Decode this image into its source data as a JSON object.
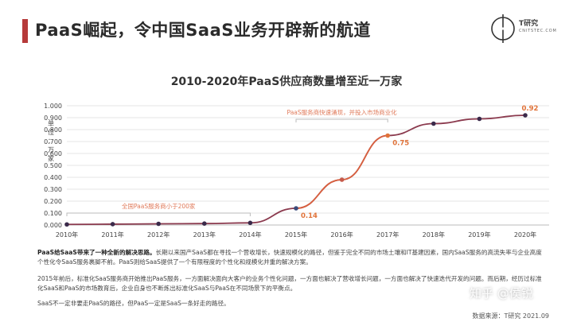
{
  "header": {
    "title": "PaaS崛起，令中国SaaS业务开辟新的航道",
    "logo_text": "T研究",
    "logo_sub": "CNITSTEC.COM"
  },
  "chart_data": {
    "type": "line",
    "title": "2010-2020年PaaS供应商数量增至近一万家",
    "ylabel": "单位：万家",
    "categories": [
      "2010年",
      "2011年",
      "2012年",
      "2013年",
      "2014年",
      "2015年",
      "2016年",
      "2017年",
      "2018年",
      "2019年",
      "2020年"
    ],
    "values": [
      0.005,
      0.007,
      0.01,
      0.012,
      0.018,
      0.14,
      0.38,
      0.75,
      0.85,
      0.89,
      0.92
    ],
    "ylim": [
      0,
      1.0
    ],
    "yticks": [
      "0.000",
      "0.100",
      "0.200",
      "0.300",
      "0.400",
      "0.500",
      "0.600",
      "0.700",
      "0.800",
      "0.900",
      "1.000"
    ],
    "grid": true,
    "line_color": "#8b1a3a",
    "marker_colors": [
      "#3a2a4a",
      "#3a2a4a",
      "#3a2a4a",
      "#3a2a4a",
      "#3a2a4a",
      "#3a4a7a",
      "#c65a4a",
      "#e0733a",
      "#3a2a4a",
      "#3a2a4a",
      "#3a2a4a"
    ],
    "data_labels": [
      {
        "index": 5,
        "text": "0.14"
      },
      {
        "index": 7,
        "text": "0.75"
      },
      {
        "index": 10,
        "text": "0.92"
      }
    ],
    "annotations": [
      {
        "text": "全国PaaS服务商小于200家",
        "from": 0,
        "to": 4
      },
      {
        "text": "PaaS服务商快速涌现，并投入市场商业化",
        "from": 5,
        "to": 7
      }
    ],
    "annotation_color": "#e07a5a"
  },
  "body": {
    "p1_bold": "PaaS给SaaS带来了一种全新的解决思路。",
    "p1": "长期以来国产SaaS都在寻找一个营收增长，快速规模化的路径，但鉴于完全不同的市场土壤和IT基建因素，国内SaaS服务的高流失率与企业高度个性化令SaaS服务裹脚不前。PaaS则给SaaS提供了一个有限程度的个性化和规模化并重的解决方案。",
    "p2": "2015年前后，标准化SaaS服务商开始推出PaaS服务，一方面解决面向大客户的业务个性化问题，一方面也解决了营收增长问题，一方面也解决了快速迭代开发的问题。而后期，经历过标准化SaaS和PaaS的市场教育后，企业自身也不断炼出标准化SaaS与PaaS在不同场景下的平衡点。",
    "p3": "SaaS不一定非要走PaaS的路径，但PaaS一定是SaaS一条好走的路径。"
  },
  "footer": {
    "source": "数据来源：T研究 2021.09",
    "watermark": "知乎 @侯锐"
  }
}
